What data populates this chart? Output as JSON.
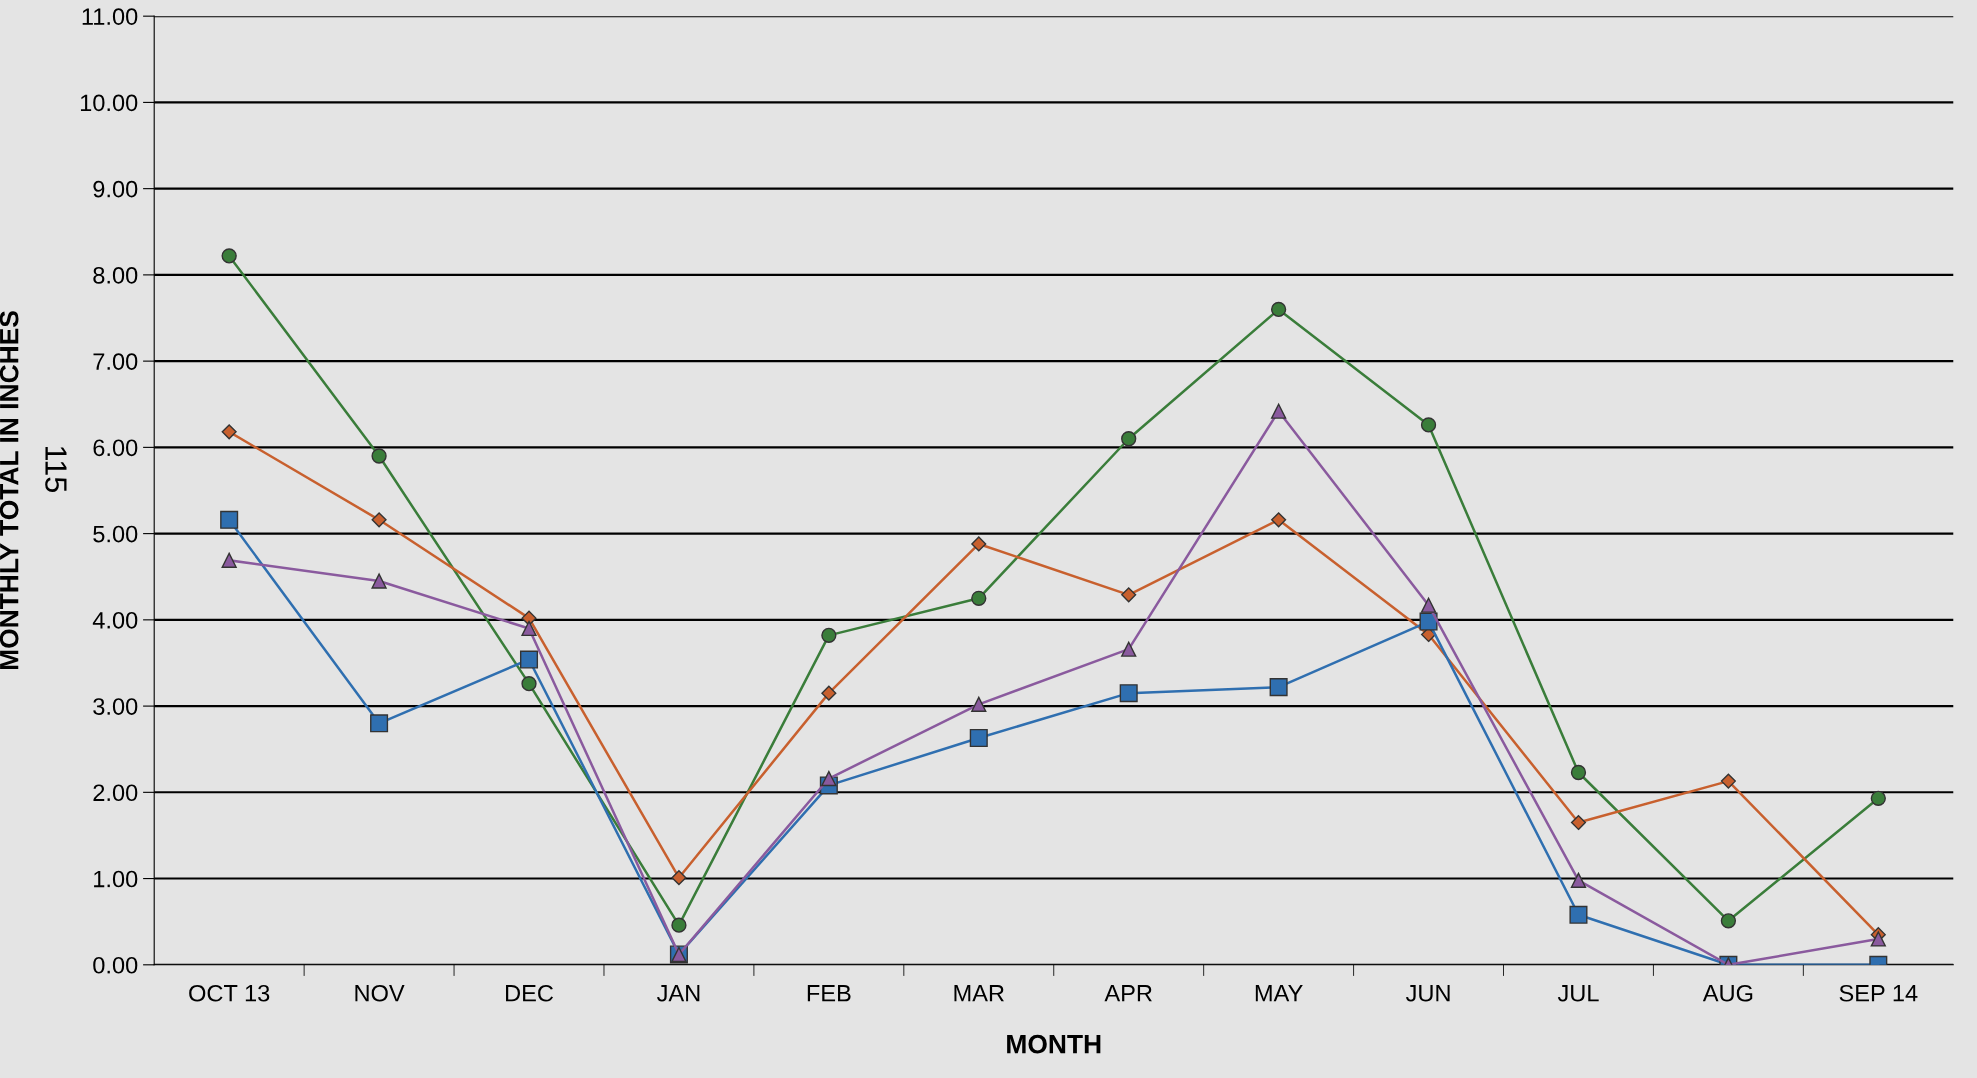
{
  "chart_data": {
    "type": "line",
    "xlabel": "MONTH",
    "ylabel": "MONTHLY TOTAL IN INCHES",
    "categories": [
      "OCT 13",
      "NOV",
      "DEC",
      "JAN",
      "FEB",
      "MAR",
      "APR",
      "MAY",
      "JUN",
      "JUL",
      "AUG",
      "SEP 14"
    ],
    "series": [
      {
        "color": "#3a7d3a",
        "marker": "circle",
        "values": [
          8.22,
          5.9,
          3.26,
          0.46,
          3.82,
          4.25,
          6.1,
          7.6,
          6.26,
          2.23,
          0.51,
          1.93
        ]
      },
      {
        "color": "#c8602e",
        "marker": "diamond",
        "values": [
          6.18,
          5.16,
          4.02,
          1.01,
          3.15,
          4.88,
          4.29,
          5.16,
          3.83,
          1.65,
          2.13,
          0.35
        ]
      },
      {
        "color": "#2f6fb0",
        "marker": "square",
        "values": [
          5.16,
          2.8,
          3.54,
          0.12,
          2.08,
          2.63,
          3.15,
          3.22,
          3.98,
          0.58,
          0.0,
          0.0
        ]
      },
      {
        "color": "#8a5a9e",
        "marker": "triangle",
        "values": [
          4.69,
          4.45,
          3.9,
          0.12,
          2.16,
          3.02,
          3.66,
          6.42,
          4.17,
          0.98,
          0.0,
          0.3
        ]
      }
    ],
    "ylim": [
      0,
      11
    ],
    "yticks": [
      {
        "value": 0,
        "label": "0.00"
      },
      {
        "value": 1,
        "label": "1.00"
      },
      {
        "value": 2,
        "label": "2.00"
      },
      {
        "value": 3,
        "label": "3.00"
      },
      {
        "value": 4,
        "label": "4.00"
      },
      {
        "value": 5,
        "label": "5.00"
      },
      {
        "value": 6,
        "label": "6.00"
      },
      {
        "value": 7,
        "label": "7.00"
      },
      {
        "value": 8,
        "label": "8.00"
      },
      {
        "value": 9,
        "label": "9.00"
      },
      {
        "value": 10,
        "label": "10.00"
      },
      {
        "value": 11,
        "label": "11.00"
      }
    ],
    "grid": "y",
    "legend": false,
    "line_style": "solid",
    "annotations": [
      "115"
    ]
  }
}
